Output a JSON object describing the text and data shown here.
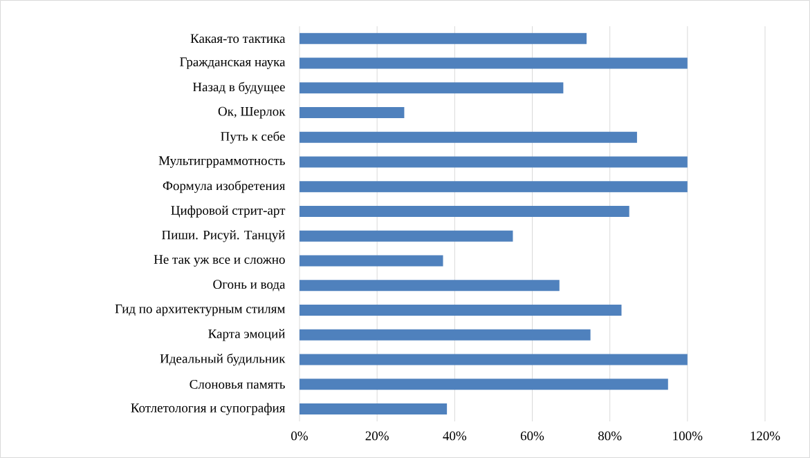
{
  "chart_data": {
    "type": "bar",
    "orientation": "horizontal",
    "color": "#4f81bd",
    "categories": [
      "Какая-то тактика",
      "Гражданская наука",
      "Назад в будущее",
      "Ок, Шерлок",
      "Путь к себе",
      "Мультигрраммотность",
      "Формула изобретения",
      "Цифровой стрит-арт",
      "Пиши. Рисуй. Танцуй",
      "Не так уж все и сложно",
      "Огонь и вода",
      "Гид по архитектурным стилям",
      "Карта эмоций",
      "Идеальный будильник",
      "Слоновья память",
      "Котлетология и супография"
    ],
    "values": [
      74,
      100,
      68,
      27,
      87,
      100,
      100,
      85,
      55,
      37,
      67,
      83,
      75,
      100,
      95,
      38
    ],
    "xlim": [
      0,
      120
    ],
    "xticks": [
      {
        "value": 0,
        "label": "0%"
      },
      {
        "value": 20,
        "label": "20%"
      },
      {
        "value": 40,
        "label": "40%"
      },
      {
        "value": 60,
        "label": "60%"
      },
      {
        "value": 80,
        "label": "80%"
      },
      {
        "value": 100,
        "label": "100%"
      },
      {
        "value": 120,
        "label": "120%"
      }
    ],
    "grid": "x"
  }
}
